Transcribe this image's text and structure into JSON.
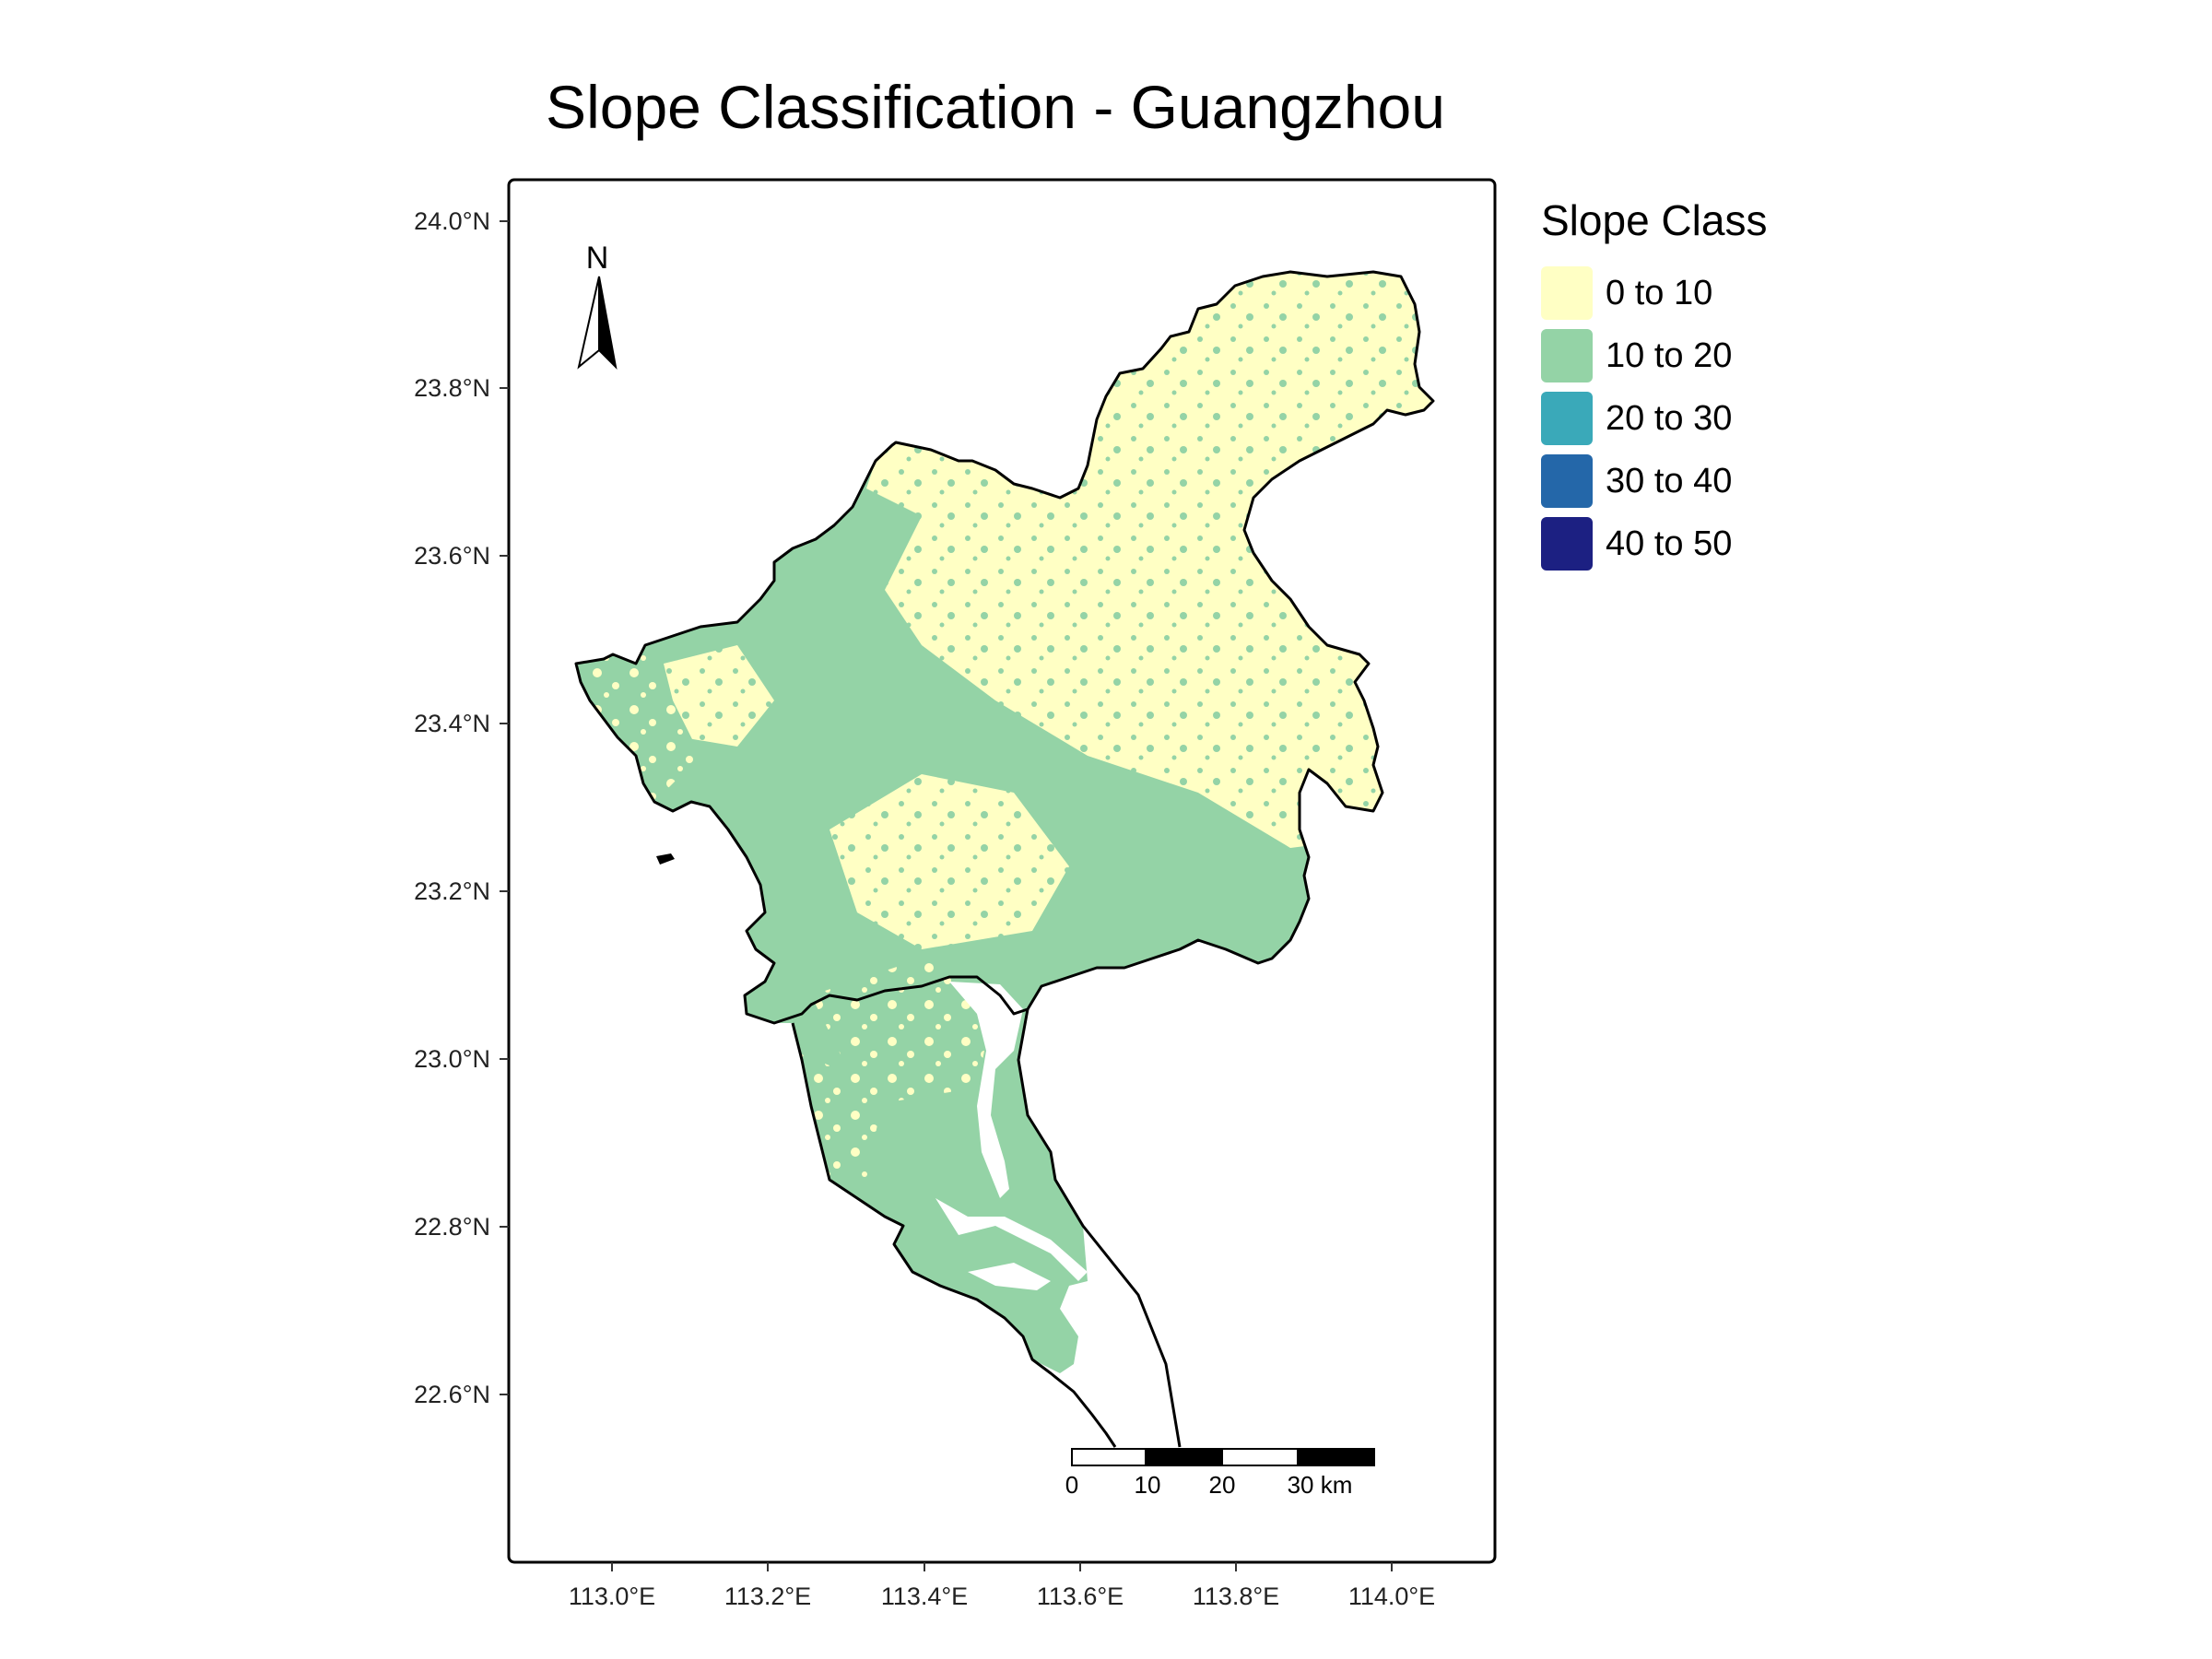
{
  "title": "Slope Classification - Guangzhou",
  "legend": {
    "title": "Slope Class",
    "items": [
      {
        "label": "0 to 10",
        "color": "#FFFFC4"
      },
      {
        "label": "10 to 20",
        "color": "#94D3A6"
      },
      {
        "label": "20 to 30",
        "color": "#3AA9B9"
      },
      {
        "label": "30 to 40",
        "color": "#2467A9"
      },
      {
        "label": "40 to 50",
        "color": "#1C2082"
      }
    ]
  },
  "north_arrow": {
    "label": "N"
  },
  "scale_bar": {
    "labels": [
      "0",
      "10",
      "20",
      "30 km"
    ]
  },
  "axes": {
    "y_ticks": [
      "24.0°N",
      "23.8°N",
      "23.6°N",
      "23.4°N",
      "23.2°N",
      "23.0°N",
      "22.8°N",
      "22.6°N"
    ],
    "x_ticks": [
      "113.0°E",
      "113.2°E",
      "113.4°E",
      "113.6°E",
      "113.8°E",
      "114.0°E"
    ]
  },
  "colors": {
    "boundary": "#000000",
    "water": "#FFFFFF"
  }
}
